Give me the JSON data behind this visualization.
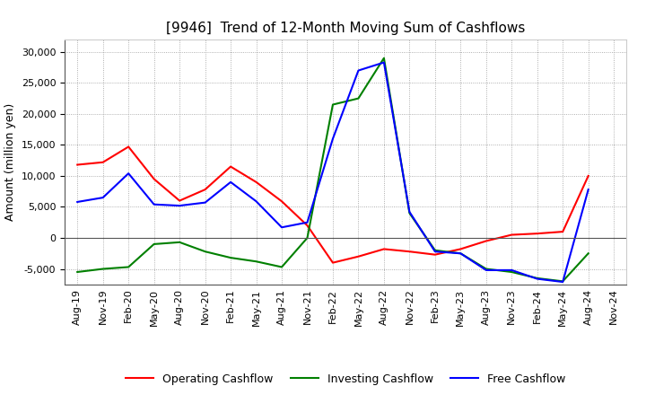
{
  "title": "[9946]  Trend of 12-Month Moving Sum of Cashflows",
  "ylabel": "Amount (million yen)",
  "x_labels": [
    "Aug-19",
    "Nov-19",
    "Feb-20",
    "May-20",
    "Aug-20",
    "Nov-20",
    "Feb-21",
    "May-21",
    "Aug-21",
    "Nov-21",
    "Feb-22",
    "May-22",
    "Aug-22",
    "Nov-22",
    "Feb-23",
    "May-23",
    "Aug-23",
    "Nov-23",
    "Feb-24",
    "May-24",
    "Aug-24",
    "Nov-24"
  ],
  "operating_cashflow": [
    11800,
    12200,
    14700,
    9500,
    6000,
    7800,
    11500,
    9000,
    5900,
    2000,
    -4000,
    -3000,
    -1800,
    -2200,
    -2700,
    -1800,
    -500,
    500,
    700,
    1000,
    10000,
    null
  ],
  "investing_cashflow": [
    -5500,
    -5000,
    -4700,
    -1000,
    -700,
    -2200,
    -3200,
    -3800,
    -4700,
    0,
    21500,
    22500,
    29000,
    4000,
    -2000,
    -2500,
    -5000,
    -5500,
    -6500,
    -7000,
    -2500,
    null
  ],
  "free_cashflow": [
    5800,
    6500,
    10400,
    5400,
    5200,
    5700,
    9000,
    5900,
    1700,
    2500,
    16000,
    27000,
    28300,
    4200,
    -2200,
    -2500,
    -5200,
    -5200,
    -6600,
    -7100,
    7800,
    null
  ],
  "operating_color": "#ff0000",
  "investing_color": "#008000",
  "free_color": "#0000ff",
  "ylim": [
    -7500,
    32000
  ],
  "yticks": [
    -5000,
    0,
    5000,
    10000,
    15000,
    20000,
    25000,
    30000
  ],
  "background_color": "#ffffff",
  "grid_color": "#999999",
  "title_fontsize": 11,
  "axis_label_fontsize": 9,
  "tick_fontsize": 8,
  "legend_fontsize": 9
}
